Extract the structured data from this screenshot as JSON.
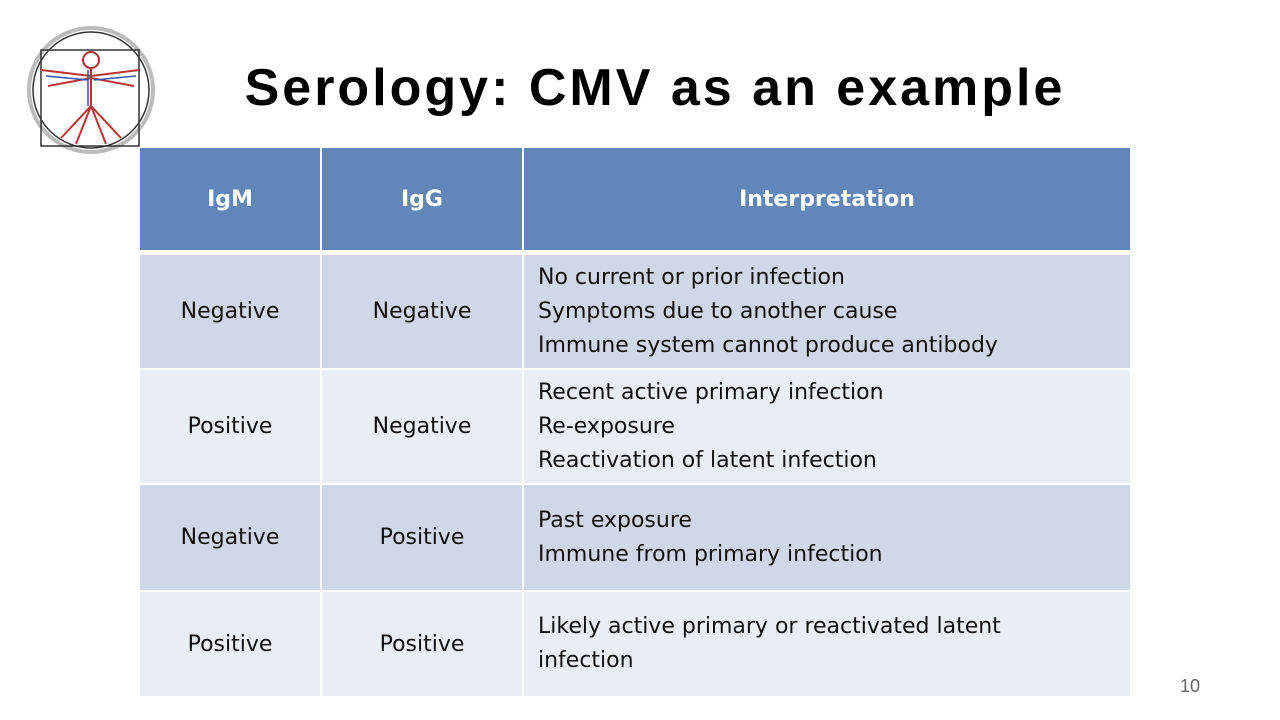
{
  "title": "Serology: CMV as an example",
  "table": {
    "header": [
      "IgM",
      "IgG",
      "Interpretation"
    ],
    "rows": [
      [
        "Negative",
        "Negative",
        [
          "No current or prior infection",
          "Symptoms due to another cause",
          "Immune system cannot produce antibody"
        ]
      ],
      [
        "Positive",
        "Negative",
        [
          "Recent active primary infection",
          "Re-exposure",
          "Reactivation of latent infection"
        ]
      ],
      [
        "Negative",
        "Positive",
        [
          "Past exposure",
          "Immune from primary infection"
        ]
      ],
      [
        "Positive",
        "Positive",
        [
          "Likely active primary or reactivated latent infection"
        ]
      ]
    ]
  },
  "page_number": "10"
}
